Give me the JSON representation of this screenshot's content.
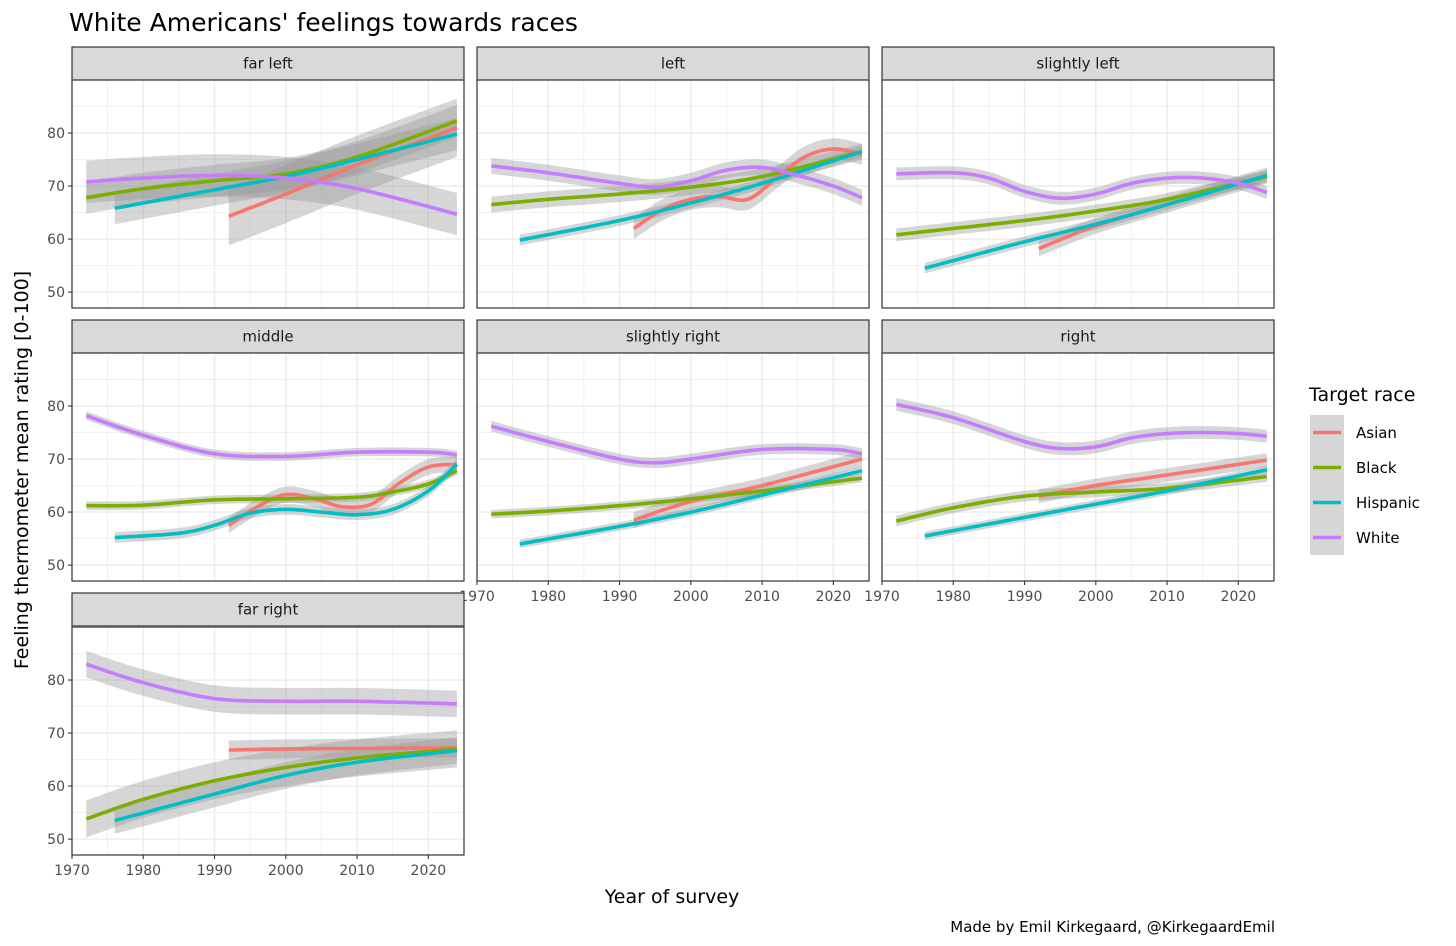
{
  "chart_data": {
    "type": "line",
    "title": "White Americans' feelings towards races",
    "xlabel": "Year of survey",
    "ylabel": "Feeling thermometer mean rating [0-100]",
    "caption": "Made by Emil Kirkegaard, @KirkegaardEmil",
    "xlim": [
      1970,
      2025
    ],
    "ylim": [
      47,
      90
    ],
    "xticks": [
      1970,
      1980,
      1990,
      2000,
      2010,
      2020
    ],
    "yticks": [
      50,
      60,
      70,
      80
    ],
    "grid": true,
    "legend": {
      "title": "Target race",
      "position": "right",
      "entries": [
        "Asian",
        "Black",
        "Hispanic",
        "White"
      ]
    },
    "colors": {
      "Asian": "#F8766D",
      "Black": "#7CAE00",
      "Hispanic": "#00BFC4",
      "White": "#C77CFF",
      "band": "#999999",
      "strip": "#d9d9d9"
    },
    "panels": [
      {
        "label": "far left",
        "series": [
          {
            "name": "Asian",
            "x": [
              1992,
              2000,
              2010,
              2024
            ],
            "y": [
              64.3,
              68.5,
              74,
              81
            ],
            "band": 5.5
          },
          {
            "name": "Black",
            "x": [
              1972,
              1980,
              1990,
              2000,
              2010,
              2024
            ],
            "y": [
              67.8,
              69.5,
              71,
              72.3,
              75.5,
              82.3
            ],
            "band": 3
          },
          {
            "name": "Hispanic",
            "x": [
              1976,
              1990,
              2000,
              2010,
              2024
            ],
            "y": [
              65.8,
              69.3,
              71.8,
              75,
              79.8
            ],
            "band": 3
          },
          {
            "name": "White",
            "x": [
              1972,
              1980,
              1990,
              2000,
              2010,
              2024
            ],
            "y": [
              70.8,
              71.5,
              72,
              71.5,
              69.5,
              64.7
            ],
            "band": 4
          }
        ]
      },
      {
        "label": "left",
        "series": [
          {
            "name": "Asian",
            "x": [
              1992,
              1996,
              2000,
              2004,
              2008,
              2012,
              2016,
              2020,
              2024
            ],
            "y": [
              62,
              65.5,
              67.5,
              68,
              67.5,
              71.5,
              75.5,
              77,
              76
            ],
            "band": 2
          },
          {
            "name": "Black",
            "x": [
              1972,
              1980,
              1990,
              2000,
              2010,
              2024
            ],
            "y": [
              66.5,
              67.5,
              68.5,
              69.8,
              71.8,
              76.5
            ],
            "band": 1.5
          },
          {
            "name": "Hispanic",
            "x": [
              1976,
              1990,
              2000,
              2010,
              2024
            ],
            "y": [
              59.8,
              63.5,
              66.8,
              70.5,
              76.5
            ],
            "band": 1
          },
          {
            "name": "White",
            "x": [
              1972,
              1980,
              1990,
              1995,
              2000,
              2005,
              2010,
              2015,
              2020,
              2024
            ],
            "y": [
              73.8,
              72.5,
              70.5,
              69.8,
              71,
              73,
              73.5,
              72,
              70,
              67.8
            ],
            "band": 1.5
          }
        ]
      },
      {
        "label": "slightly left",
        "series": [
          {
            "name": "Asian",
            "x": [
              1992,
              2000,
              2010,
              2024
            ],
            "y": [
              58.2,
              62.5,
              66.5,
              72
            ],
            "band": 1.5
          },
          {
            "name": "Black",
            "x": [
              1972,
              1980,
              1990,
              2000,
              2010,
              2024
            ],
            "y": [
              60.8,
              62,
              63.5,
              65.3,
              67.5,
              71.8
            ],
            "band": 1.2
          },
          {
            "name": "Hispanic",
            "x": [
              1976,
              1990,
              2000,
              2010,
              2024
            ],
            "y": [
              54.5,
              59.5,
              62.8,
              66.5,
              72
            ],
            "band": 1
          },
          {
            "name": "White",
            "x": [
              1972,
              1980,
              1985,
              1990,
              1995,
              2000,
              2005,
              2010,
              2015,
              2020,
              2024
            ],
            "y": [
              72.3,
              72.5,
              71.5,
              69,
              67.7,
              68.5,
              70.5,
              71.5,
              71.5,
              70.5,
              68.8
            ],
            "band": 1.2
          }
        ]
      },
      {
        "label": "middle",
        "series": [
          {
            "name": "Asian",
            "x": [
              1992,
              1996,
              2000,
              2004,
              2008,
              2012,
              2016,
              2020,
              2024
            ],
            "y": [
              57.5,
              61,
              63.3,
              62.5,
              61,
              61.5,
              65.5,
              68.5,
              69
            ],
            "band": 1.5
          },
          {
            "name": "Black",
            "x": [
              1972,
              1980,
              1990,
              2000,
              2010,
              2015,
              2020,
              2024
            ],
            "y": [
              61.2,
              61.3,
              62.3,
              62.5,
              62.8,
              63.8,
              65.3,
              67.8
            ],
            "band": 0.8
          },
          {
            "name": "Hispanic",
            "x": [
              1976,
              1985,
              1990,
              1995,
              2000,
              2005,
              2010,
              2015,
              2020,
              2024
            ],
            "y": [
              55.2,
              56,
              57.5,
              59.8,
              60.5,
              60,
              59.5,
              60.5,
              64,
              69
            ],
            "band": 1
          },
          {
            "name": "White",
            "x": [
              1972,
              1980,
              1990,
              2000,
              2010,
              2020,
              2024
            ],
            "y": [
              78.2,
              74.5,
              71,
              70.5,
              71.3,
              71.3,
              70.8
            ],
            "band": 0.8
          }
        ]
      },
      {
        "label": "slightly right",
        "series": [
          {
            "name": "Asian",
            "x": [
              1992,
              2000,
              2010,
              2024
            ],
            "y": [
              58.5,
              62,
              65,
              70
            ],
            "band": 1.5
          },
          {
            "name": "Black",
            "x": [
              1972,
              1980,
              1990,
              2000,
              2010,
              2024
            ],
            "y": [
              59.6,
              60.2,
              61.2,
              62.5,
              64,
              66.4
            ],
            "band": 0.8
          },
          {
            "name": "Hispanic",
            "x": [
              1976,
              1990,
              2000,
              2010,
              2024
            ],
            "y": [
              54,
              57.3,
              60,
              63.2,
              67.8
            ],
            "band": 0.8
          },
          {
            "name": "White",
            "x": [
              1972,
              1980,
              1990,
              1995,
              2000,
              2010,
              2020,
              2024
            ],
            "y": [
              76.2,
              73.3,
              70,
              69.3,
              70,
              71.8,
              71.8,
              71
            ],
            "band": 1
          }
        ]
      },
      {
        "label": "right",
        "series": [
          {
            "name": "Asian",
            "x": [
              1992,
              2000,
              2010,
              2024
            ],
            "y": [
              63,
              65,
              67,
              69.8
            ],
            "band": 1.3
          },
          {
            "name": "Black",
            "x": [
              1972,
              1980,
              1990,
              2000,
              2010,
              2024
            ],
            "y": [
              58.3,
              60.8,
              63,
              63.8,
              64.5,
              66.7
            ],
            "band": 1
          },
          {
            "name": "Hispanic",
            "x": [
              1976,
              1990,
              2000,
              2010,
              2024
            ],
            "y": [
              55.5,
              59,
              61.5,
              64,
              68
            ],
            "band": 0.8
          },
          {
            "name": "White",
            "x": [
              1972,
              1980,
              1990,
              1995,
              2000,
              2005,
              2010,
              2015,
              2020,
              2024
            ],
            "y": [
              80.3,
              77.8,
              73.3,
              72,
              72.3,
              74,
              74.8,
              75,
              74.8,
              74.3
            ],
            "band": 1.2
          }
        ]
      },
      {
        "label": "far right",
        "series": [
          {
            "name": "Asian",
            "x": [
              1992,
              2000,
              2010,
              2024
            ],
            "y": [
              66.8,
              67,
              67.1,
              67.2
            ],
            "band": 1.8
          },
          {
            "name": "Black",
            "x": [
              1972,
              1980,
              1990,
              2000,
              2010,
              2024
            ],
            "y": [
              53.8,
              57.5,
              61,
              63.5,
              65.3,
              67
            ],
            "band": 3.5
          },
          {
            "name": "Hispanic",
            "x": [
              1976,
              1990,
              2000,
              2010,
              2024
            ],
            "y": [
              53.5,
              58.5,
              62,
              64.5,
              66.7
            ],
            "band": 2.5
          },
          {
            "name": "White",
            "x": [
              1972,
              1980,
              1990,
              2000,
              2010,
              2024
            ],
            "y": [
              83,
              79.5,
              76.5,
              76,
              76,
              75.5
            ],
            "band": 2.5
          }
        ]
      }
    ]
  }
}
